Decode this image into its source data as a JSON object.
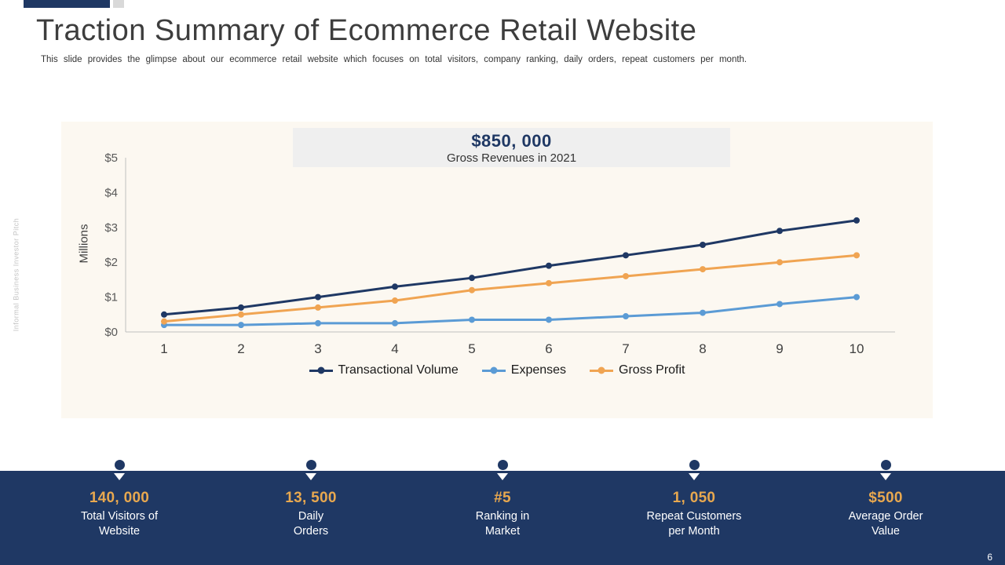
{
  "slide": {
    "title": "Traction Summary of Ecommerce Retail Website",
    "subtitle": "This slide provides the glimpse about our ecommerce retail website which focuses on total visitors, company ranking, daily orders, repeat customers per month.",
    "side_text": "Informal Business Investor Pitch",
    "page_number": "6"
  },
  "chart_data": {
    "type": "line",
    "headline": "$850, 000",
    "headline_caption": "Gross Revenues in 2021",
    "categories": [
      "1",
      "2",
      "3",
      "4",
      "5",
      "6",
      "7",
      "8",
      "9",
      "10"
    ],
    "series": [
      {
        "name": "Transactional Volume",
        "color": "#1F3864",
        "values": [
          0.5,
          0.7,
          1.0,
          1.3,
          1.55,
          1.9,
          2.2,
          2.5,
          2.9,
          3.2
        ]
      },
      {
        "name": "Expenses",
        "color": "#5B9BD5",
        "values": [
          0.2,
          0.2,
          0.25,
          0.25,
          0.35,
          0.35,
          0.45,
          0.55,
          0.8,
          1.0
        ]
      },
      {
        "name": "Gross Profit",
        "color": "#F0A452",
        "values": [
          0.3,
          0.5,
          0.7,
          0.9,
          1.2,
          1.4,
          1.6,
          1.8,
          2.0,
          2.2
        ]
      }
    ],
    "xlabel": "",
    "ylabel": "Millions",
    "ylim": [
      0,
      5
    ],
    "ytick_labels": [
      "$0",
      "$1",
      "$2",
      "$3",
      "$4",
      "$5"
    ],
    "legend_position": "bottom",
    "grid": false,
    "plot_background": "#FCF8F1"
  },
  "stats": {
    "band_color": "#1F3864",
    "accent_color": "#E8A84F",
    "items": [
      {
        "value": "140, 000",
        "line1": "Total Visitors of",
        "line2": "Website"
      },
      {
        "value": "13, 500",
        "line1": "Daily",
        "line2": "Orders"
      },
      {
        "value": "#5",
        "line1": "Ranking in",
        "line2": "Market"
      },
      {
        "value": "1, 050",
        "line1": "Repeat Customers",
        "line2": "per Month"
      },
      {
        "value": "$500",
        "line1": "Average Order",
        "line2": "Value"
      }
    ]
  }
}
